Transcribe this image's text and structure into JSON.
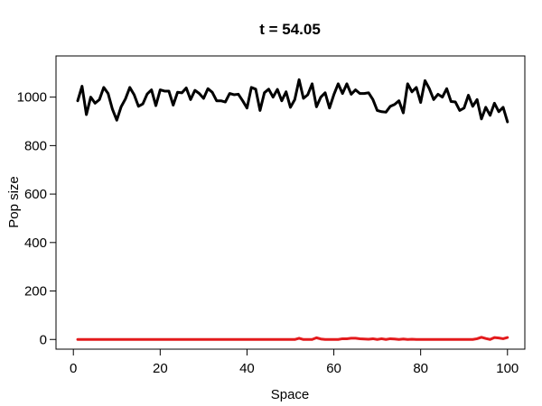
{
  "chart_data": {
    "type": "line",
    "title": "t = 54.05",
    "xlabel": "Space",
    "ylabel": "Pop size",
    "xlim": [
      -4,
      104
    ],
    "ylim": [
      -40,
      1170
    ],
    "x_ticks": [
      0,
      20,
      40,
      60,
      80,
      100
    ],
    "y_ticks": [
      0,
      200,
      400,
      600,
      800,
      1000
    ],
    "grid": false,
    "legend": "none",
    "x": [
      1,
      2,
      3,
      4,
      5,
      6,
      7,
      8,
      9,
      10,
      11,
      12,
      13,
      14,
      15,
      16,
      17,
      18,
      19,
      20,
      21,
      22,
      23,
      24,
      25,
      26,
      27,
      28,
      29,
      30,
      31,
      32,
      33,
      34,
      35,
      36,
      37,
      38,
      39,
      40,
      41,
      42,
      43,
      44,
      45,
      46,
      47,
      48,
      49,
      50,
      51,
      52,
      53,
      54,
      55,
      56,
      57,
      58,
      59,
      60,
      61,
      62,
      63,
      64,
      65,
      66,
      67,
      68,
      69,
      70,
      71,
      72,
      73,
      74,
      75,
      76,
      77,
      78,
      79,
      80,
      81,
      82,
      83,
      84,
      85,
      86,
      87,
      88,
      89,
      90,
      91,
      92,
      93,
      94,
      95,
      96,
      97,
      98,
      99,
      100
    ],
    "series": [
      {
        "color": "#000000",
        "values": [
          985,
          1045,
          928,
          1000,
          975,
          990,
          1040,
          1015,
          950,
          905,
          960,
          993,
          1040,
          1010,
          962,
          972,
          1013,
          1030,
          965,
          1030,
          1025,
          1025,
          967,
          1020,
          1018,
          1038,
          990,
          1028,
          1015,
          995,
          1035,
          1020,
          985,
          985,
          980,
          1015,
          1010,
          1012,
          985,
          955,
          1040,
          1033,
          945,
          1018,
          1033,
          1000,
          1032,
          985,
          1022,
          958,
          990,
          1072,
          995,
          1010,
          1055,
          960,
          1000,
          1018,
          955,
          1010,
          1055,
          1015,
          1055,
          1012,
          1030,
          1015,
          1015,
          1018,
          990,
          945,
          940,
          938,
          962,
          970,
          985,
          935,
          1055,
          1022,
          1040,
          978,
          1068,
          1035,
          990,
          1012,
          1000,
          1035,
          982,
          980,
          945,
          955,
          1008,
          962,
          990,
          910,
          958,
          925,
          975,
          940,
          958,
          898
        ]
      },
      {
        "color": "#e31a1c",
        "values": [
          0,
          0,
          0,
          0,
          0,
          0,
          0,
          0,
          0,
          0,
          0,
          0,
          0,
          0,
          0,
          0,
          0,
          0,
          0,
          0,
          0,
          0,
          0,
          0,
          0,
          0,
          0,
          0,
          0,
          0,
          0,
          0,
          0,
          0,
          0,
          0,
          0,
          0,
          0,
          0,
          0,
          0,
          0,
          0,
          0,
          0,
          0,
          0,
          0,
          0,
          0,
          5,
          0,
          0,
          0,
          7,
          2,
          0,
          0,
          0,
          0,
          3,
          3,
          5,
          5,
          3,
          2,
          1,
          3,
          0,
          3,
          0,
          3,
          2,
          0,
          2,
          0,
          1,
          0,
          0,
          0,
          0,
          0,
          0,
          0,
          0,
          0,
          0,
          0,
          0,
          0,
          0,
          3,
          9,
          4,
          0,
          8,
          6,
          3,
          8
        ]
      }
    ]
  }
}
